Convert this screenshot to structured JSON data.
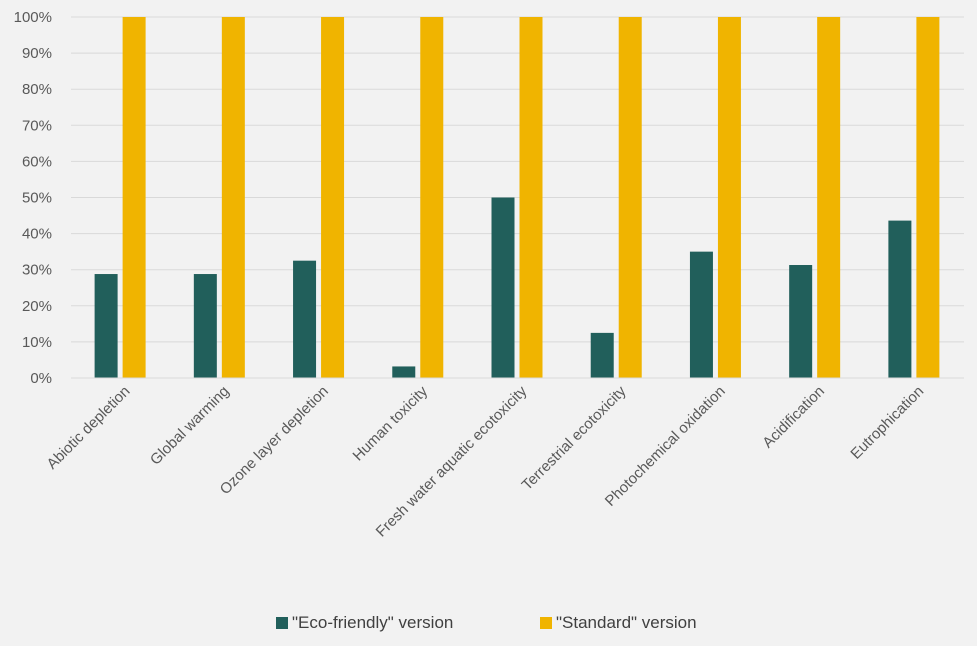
{
  "chart_data": {
    "type": "bar",
    "categories": [
      "Abiotic depletion",
      "Global warming",
      "Ozone layer depletion",
      "Human toxicity",
      "Fresh water aquatic ecotoxicity",
      "Terrestrial ecotoxicity",
      "Photochemical oxidation",
      "Acidification",
      "Eutrophication"
    ],
    "series": [
      {
        "name": "\"Eco-friendly\" version",
        "color": "#215f5b",
        "values": [
          28.8,
          28.8,
          32.5,
          3.2,
          50.0,
          12.5,
          35.0,
          31.3,
          43.6
        ]
      },
      {
        "name": "\"Standard\" version",
        "color": "#f0b400",
        "values": [
          100,
          100,
          100,
          100,
          100,
          100,
          100,
          100,
          100
        ]
      }
    ],
    "ylim": [
      0,
      100
    ],
    "yticks": [
      "0%",
      "10%",
      "20%",
      "30%",
      "40%",
      "50%",
      "60%",
      "70%",
      "80%",
      "90%",
      "100%"
    ],
    "grid": true,
    "legend_position": "bottom",
    "title": "",
    "xlabel": "",
    "ylabel": ""
  }
}
